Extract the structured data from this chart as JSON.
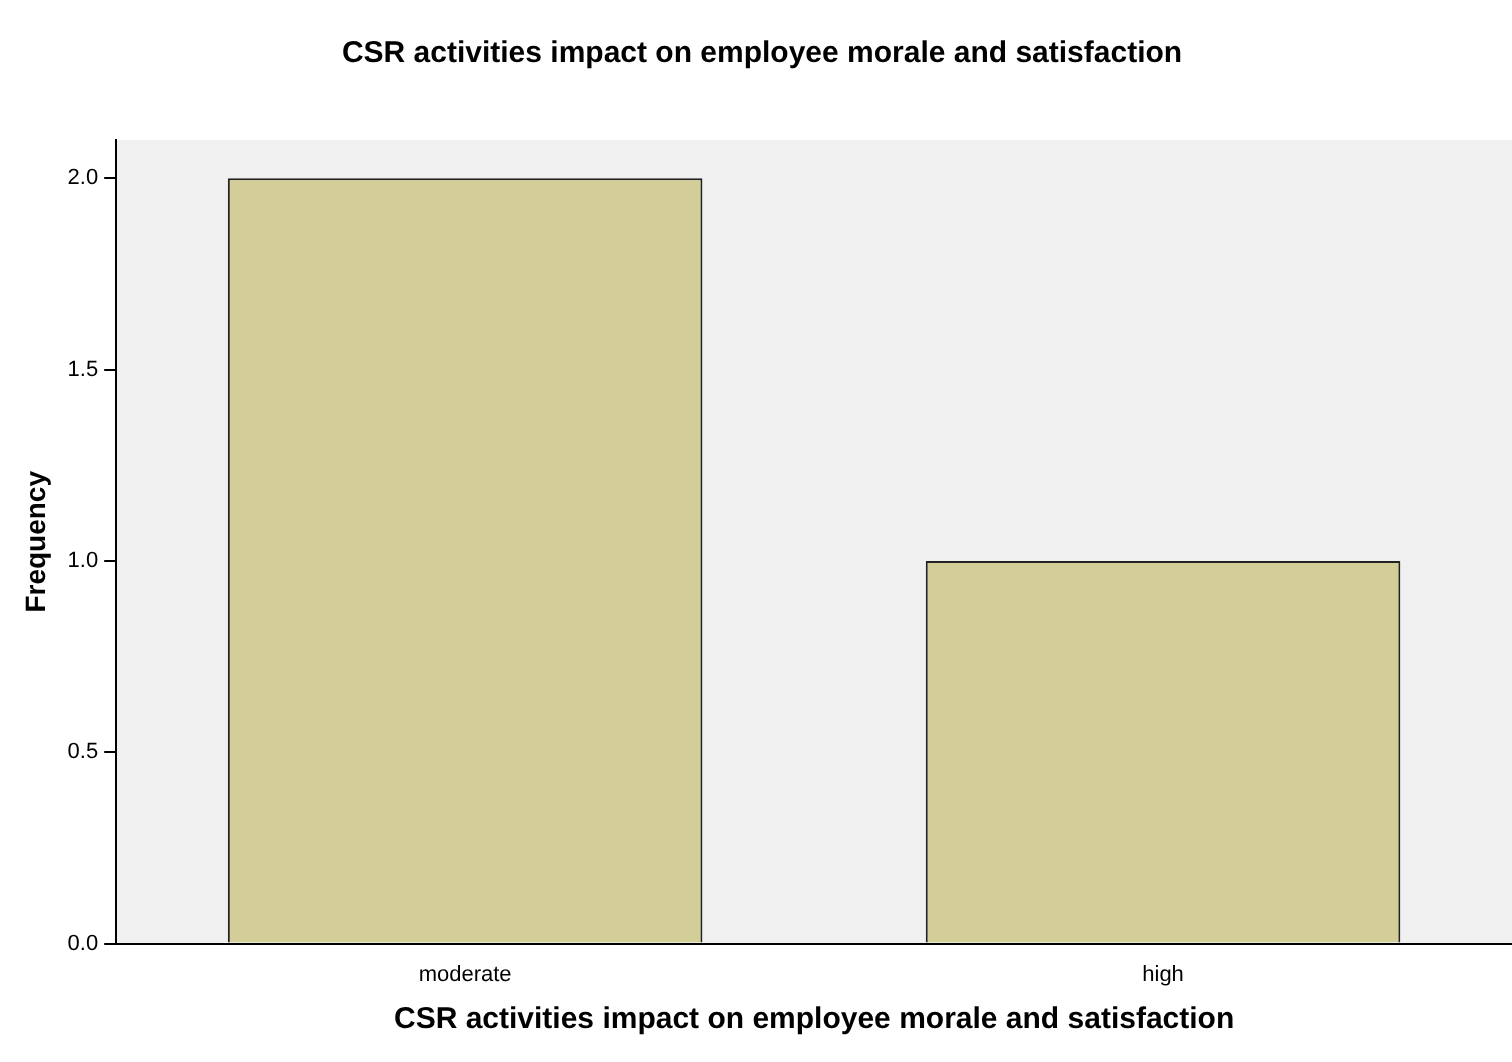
{
  "chart_data": {
    "type": "bar",
    "title": "CSR activities impact on employee morale and satisfaction",
    "xlabel": "CSR activities impact on employee morale and satisfaction",
    "ylabel": "Frequency",
    "categories": [
      "moderate",
      "high"
    ],
    "values": [
      2,
      1
    ],
    "color": "#d3ce97",
    "ylim": [
      0,
      2.1
    ],
    "yticks": [
      {
        "value": 0,
        "label": "0.0"
      },
      {
        "value": 0.5,
        "label": "0.5"
      },
      {
        "value": 1,
        "label": "1.0"
      },
      {
        "value": 1.5,
        "label": "1.5"
      },
      {
        "value": 2,
        "label": "2.0"
      }
    ],
    "grid": false,
    "legend": false
  }
}
